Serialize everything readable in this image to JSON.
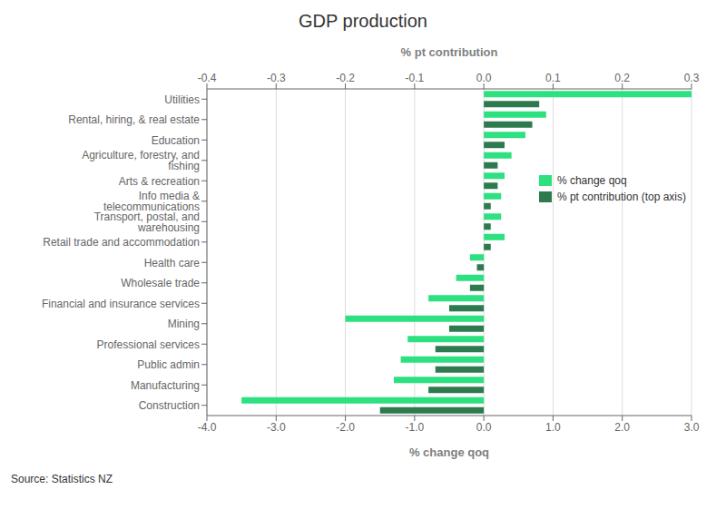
{
  "chart_data": {
    "type": "bar",
    "orientation": "horizontal",
    "title": "GDP production",
    "categories": [
      "Utilities",
      "Rental, hiring, & real estate",
      "Education",
      "Agriculture, forestry, and fishing",
      "Arts & recreation",
      "Info media & telecommunications",
      "Transport, postal, and warehousing",
      "Retail trade and accommodation",
      "Health care",
      "Wholesale trade",
      "Financial and insurance services",
      "Mining",
      "Professional services",
      "Public admin",
      "Manufacturing",
      "Construction"
    ],
    "series": [
      {
        "name": "% change qoq",
        "color": "#2de080",
        "values": [
          3.0,
          0.9,
          0.6,
          0.4,
          0.3,
          0.25,
          0.25,
          0.3,
          -0.2,
          -0.4,
          -0.8,
          -2.0,
          -1.1,
          -1.2,
          -1.3,
          -3.5
        ]
      },
      {
        "name": "% pt contribution (top axis)",
        "color": "#2d7a4f",
        "axis": "x2",
        "values": [
          0.08,
          0.07,
          0.03,
          0.02,
          0.02,
          0.01,
          0.01,
          0.01,
          -0.01,
          -0.02,
          -0.05,
          -0.05,
          -0.07,
          -0.07,
          -0.08,
          -0.15
        ]
      }
    ],
    "xlabel": "% change qoq",
    "x2label": "% pt contribution",
    "xlim": [
      -4.0,
      3.0
    ],
    "xticks": [
      {
        "value": -4,
        "label": "-4.0"
      },
      {
        "value": -3,
        "label": "-3.0"
      },
      {
        "value": -2,
        "label": "-2.0"
      },
      {
        "value": -1,
        "label": "-1.0"
      },
      {
        "value": 0,
        "label": "0.0"
      },
      {
        "value": 1,
        "label": "1.0"
      },
      {
        "value": 2,
        "label": "2.0"
      },
      {
        "value": 3,
        "label": "3.0"
      }
    ],
    "x2lim": [
      -0.4,
      0.3
    ],
    "x2ticks": [
      -0.4,
      -0.3,
      -0.2,
      -0.1,
      {
        "value": 0,
        "label": "0.0"
      },
      0.1,
      0.2,
      0.3
    ],
    "grid": true,
    "legend": "upper right",
    "annotation": "Source:  Statistics NZ"
  }
}
